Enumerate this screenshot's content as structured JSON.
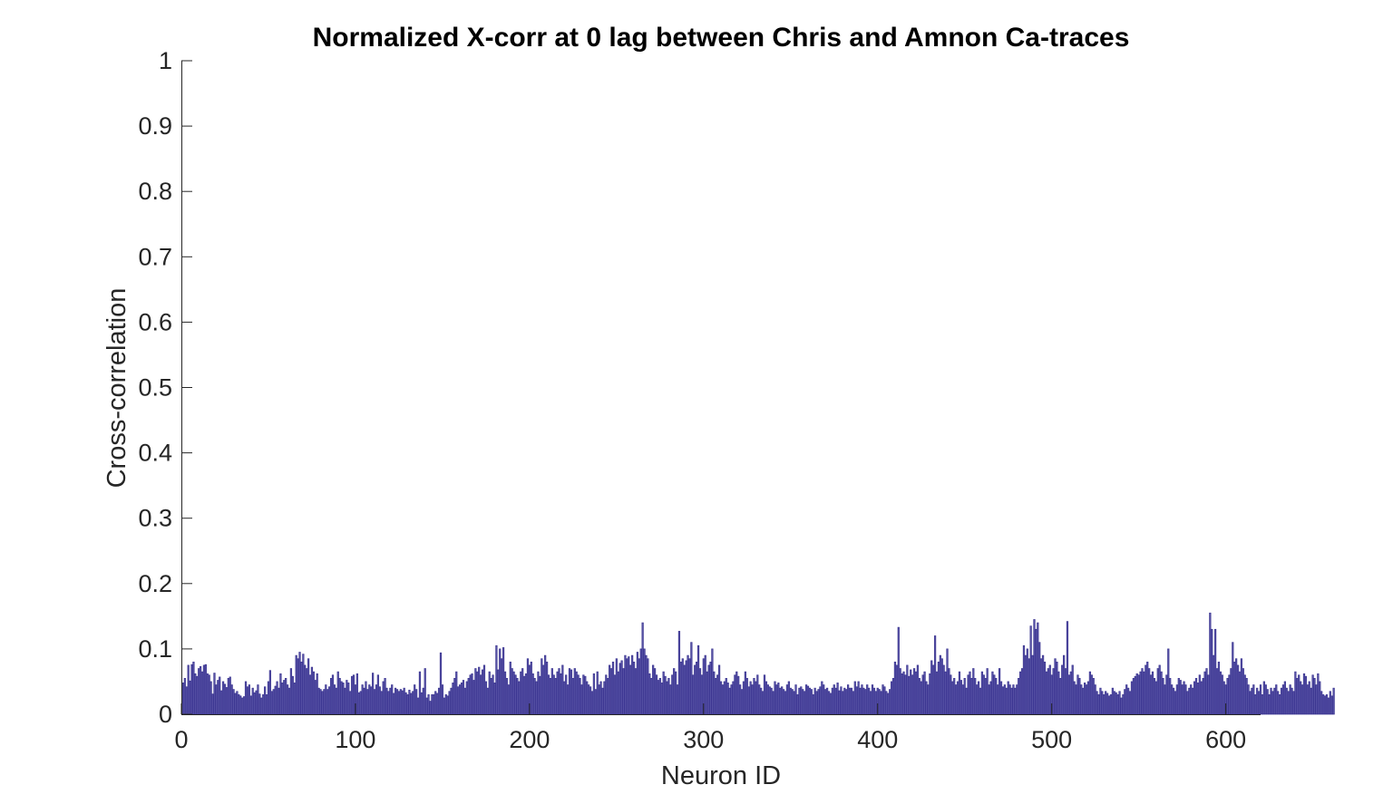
{
  "chart_data": {
    "type": "bar",
    "title": "Normalized X-corr at 0 lag between Chris and Amnon Ca-traces",
    "xlabel": "Neuron ID",
    "ylabel": "Cross-correlation",
    "xlim": [
      0,
      620
    ],
    "ylim": [
      0,
      1
    ],
    "xticks": [
      0,
      100,
      200,
      300,
      400,
      500,
      600
    ],
    "xtick_labels": [
      "0",
      "100",
      "200",
      "300",
      "400",
      "500",
      "600"
    ],
    "yticks": [
      0,
      0.1,
      0.2,
      0.3,
      0.4,
      0.5,
      0.6,
      0.7,
      0.8,
      0.9,
      1
    ],
    "ytick_labels": [
      "0",
      "0.1",
      "0.2",
      "0.3",
      "0.4",
      "0.5",
      "0.6",
      "0.7",
      "0.8",
      "0.9",
      "1"
    ],
    "grid": false,
    "bar_color": "#3b3591",
    "bar_fill": "#5c57a8",
    "x_start": 1,
    "values": [
      0.048,
      0.055,
      0.042,
      0.075,
      0.051,
      0.076,
      0.08,
      0.062,
      0.058,
      0.07,
      0.073,
      0.065,
      0.075,
      0.076,
      0.062,
      0.06,
      0.05,
      0.031,
      0.063,
      0.045,
      0.052,
      0.057,
      0.036,
      0.05,
      0.046,
      0.041,
      0.055,
      0.057,
      0.045,
      0.038,
      0.032,
      0.035,
      0.03,
      0.028,
      0.025,
      0.027,
      0.05,
      0.042,
      0.045,
      0.028,
      0.04,
      0.033,
      0.036,
      0.045,
      0.031,
      0.025,
      0.03,
      0.042,
      0.03,
      0.05,
      0.067,
      0.035,
      0.038,
      0.043,
      0.05,
      0.04,
      0.062,
      0.048,
      0.052,
      0.055,
      0.045,
      0.04,
      0.07,
      0.058,
      0.048,
      0.09,
      0.085,
      0.095,
      0.08,
      0.092,
      0.075,
      0.07,
      0.085,
      0.06,
      0.072,
      0.065,
      0.052,
      0.062,
      0.04,
      0.038,
      0.035,
      0.038,
      0.045,
      0.038,
      0.042,
      0.055,
      0.06,
      0.045,
      0.04,
      0.065,
      0.055,
      0.05,
      0.048,
      0.04,
      0.052,
      0.048,
      0.035,
      0.058,
      0.06,
      0.045,
      0.062,
      0.033,
      0.035,
      0.045,
      0.04,
      0.05,
      0.038,
      0.045,
      0.042,
      0.063,
      0.038,
      0.045,
      0.06,
      0.042,
      0.035,
      0.05,
      0.055,
      0.04,
      0.035,
      0.04,
      0.045,
      0.032,
      0.04,
      0.038,
      0.035,
      0.038,
      0.036,
      0.04,
      0.033,
      0.03,
      0.037,
      0.032,
      0.035,
      0.045,
      0.038,
      0.025,
      0.065,
      0.033,
      0.04,
      0.07,
      0.025,
      0.03,
      0.02,
      0.03,
      0.03,
      0.035,
      0.032,
      0.04,
      0.094,
      0.045,
      0.025,
      0.03,
      0.028,
      0.035,
      0.04,
      0.048,
      0.055,
      0.065,
      0.042,
      0.045,
      0.048,
      0.052,
      0.04,
      0.05,
      0.055,
      0.06,
      0.062,
      0.052,
      0.07,
      0.065,
      0.072,
      0.06,
      0.068,
      0.075,
      0.05,
      0.04,
      0.065,
      0.055,
      0.06,
      0.048,
      0.105,
      0.068,
      0.1,
      0.085,
      0.102,
      0.065,
      0.055,
      0.045,
      0.08,
      0.07,
      0.065,
      0.06,
      0.055,
      0.05,
      0.065,
      0.07,
      0.058,
      0.062,
      0.085,
      0.075,
      0.08,
      0.062,
      0.055,
      0.05,
      0.065,
      0.058,
      0.085,
      0.075,
      0.09,
      0.08,
      0.06,
      0.055,
      0.07,
      0.06,
      0.055,
      0.065,
      0.07,
      0.062,
      0.075,
      0.05,
      0.06,
      0.045,
      0.07,
      0.068,
      0.055,
      0.07,
      0.065,
      0.06,
      0.055,
      0.045,
      0.06,
      0.058,
      0.05,
      0.045,
      0.042,
      0.035,
      0.062,
      0.038,
      0.065,
      0.045,
      0.05,
      0.04,
      0.05,
      0.06,
      0.055,
      0.075,
      0.07,
      0.08,
      0.06,
      0.085,
      0.065,
      0.078,
      0.082,
      0.07,
      0.09,
      0.085,
      0.088,
      0.075,
      0.09,
      0.08,
      0.07,
      0.095,
      0.085,
      0.1,
      0.14,
      0.1,
      0.09,
      0.085,
      0.062,
      0.055,
      0.075,
      0.07,
      0.06,
      0.052,
      0.055,
      0.048,
      0.065,
      0.058,
      0.05,
      0.055,
      0.045,
      0.06,
      0.07,
      0.065,
      0.045,
      0.127,
      0.08,
      0.085,
      0.075,
      0.082,
      0.09,
      0.085,
      0.11,
      0.06,
      0.075,
      0.08,
      0.105,
      0.07,
      0.06,
      0.085,
      0.09,
      0.065,
      0.075,
      0.08,
      0.1,
      0.065,
      0.055,
      0.06,
      0.075,
      0.05,
      0.045,
      0.05,
      0.055,
      0.048,
      0.04,
      0.045,
      0.05,
      0.06,
      0.065,
      0.058,
      0.045,
      0.038,
      0.05,
      0.065,
      0.055,
      0.042,
      0.05,
      0.045,
      0.055,
      0.05,
      0.06,
      0.045,
      0.04,
      0.035,
      0.06,
      0.05,
      0.045,
      0.042,
      0.04,
      0.035,
      0.05,
      0.045,
      0.048,
      0.04,
      0.042,
      0.038,
      0.035,
      0.045,
      0.05,
      0.04,
      0.038,
      0.035,
      0.045,
      0.03,
      0.04,
      0.042,
      0.038,
      0.035,
      0.045,
      0.043,
      0.04,
      0.038,
      0.03,
      0.04,
      0.035,
      0.038,
      0.042,
      0.05,
      0.045,
      0.038,
      0.04,
      0.035,
      0.032,
      0.04,
      0.045,
      0.04,
      0.048,
      0.036,
      0.042,
      0.035,
      0.04,
      0.038,
      0.045,
      0.04,
      0.04,
      0.035,
      0.05,
      0.042,
      0.05,
      0.04,
      0.045,
      0.04,
      0.038,
      0.045,
      0.04,
      0.035,
      0.045,
      0.04,
      0.035,
      0.04,
      0.038,
      0.035,
      0.045,
      0.042,
      0.035,
      0.032,
      0.038,
      0.05,
      0.055,
      0.08,
      0.075,
      0.133,
      0.07,
      0.062,
      0.065,
      0.06,
      0.075,
      0.058,
      0.068,
      0.06,
      0.07,
      0.065,
      0.075,
      0.055,
      0.05,
      0.06,
      0.065,
      0.05,
      0.045,
      0.062,
      0.082,
      0.075,
      0.12,
      0.065,
      0.08,
      0.09,
      0.085,
      0.075,
      0.065,
      0.1,
      0.07,
      0.06,
      0.05,
      0.055,
      0.045,
      0.05,
      0.065,
      0.052,
      0.045,
      0.055,
      0.04,
      0.06,
      0.065,
      0.055,
      0.07,
      0.055,
      0.045,
      0.05,
      0.04,
      0.065,
      0.06,
      0.055,
      0.07,
      0.045,
      0.05,
      0.065,
      0.06,
      0.055,
      0.045,
      0.07,
      0.05,
      0.042,
      0.045,
      0.04,
      0.05,
      0.045,
      0.04,
      0.045,
      0.04,
      0.045,
      0.055,
      0.065,
      0.07,
      0.105,
      0.09,
      0.1,
      0.085,
      0.135,
      0.09,
      0.145,
      0.13,
      0.14,
      0.11,
      0.085,
      0.09,
      0.08,
      0.065,
      0.07,
      0.075,
      0.06,
      0.07,
      0.085,
      0.08,
      0.065,
      0.055,
      0.075,
      0.09,
      0.07,
      0.142,
      0.06,
      0.065,
      0.075,
      0.05,
      0.045,
      0.06,
      0.055,
      0.045,
      0.04,
      0.048,
      0.045,
      0.05,
      0.065,
      0.06,
      0.055,
      0.045,
      0.035,
      0.03,
      0.04,
      0.035,
      0.03,
      0.035,
      0.032,
      0.028,
      0.03,
      0.04,
      0.035,
      0.033,
      0.03,
      0.035,
      0.025,
      0.03,
      0.038,
      0.045,
      0.04,
      0.035,
      0.05,
      0.055,
      0.058,
      0.062,
      0.06,
      0.065,
      0.07,
      0.065,
      0.075,
      0.08,
      0.07,
      0.06,
      0.065,
      0.055,
      0.05,
      0.07,
      0.075,
      0.065,
      0.055,
      0.045,
      0.06,
      0.1,
      0.055,
      0.045,
      0.04,
      0.035,
      0.045,
      0.055,
      0.052,
      0.045,
      0.05,
      0.045,
      0.035,
      0.04,
      0.045,
      0.04,
      0.05,
      0.055,
      0.048,
      0.06,
      0.05,
      0.055,
      0.065,
      0.07,
      0.06,
      0.155,
      0.13,
      0.09,
      0.13,
      0.07,
      0.08,
      0.065,
      0.06,
      0.05,
      0.045,
      0.055,
      0.06,
      0.07,
      0.11,
      0.08,
      0.085,
      0.075,
      0.065,
      0.085,
      0.07,
      0.06,
      0.055,
      0.045,
      0.035,
      0.04,
      0.045,
      0.03,
      0.04,
      0.035,
      0.045,
      0.03,
      0.05,
      0.045,
      0.038,
      0.03,
      0.04,
      0.035,
      0.04,
      0.045,
      0.035,
      0.03,
      0.04,
      0.045,
      0.05,
      0.04,
      0.035,
      0.045,
      0.04,
      0.035,
      0.065,
      0.055,
      0.06,
      0.05,
      0.045,
      0.062,
      0.058,
      0.045,
      0.05,
      0.04,
      0.06,
      0.055,
      0.045,
      0.062,
      0.05,
      0.035,
      0.03,
      0.028,
      0.03,
      0.025,
      0.035,
      0.028,
      0.04
    ]
  }
}
